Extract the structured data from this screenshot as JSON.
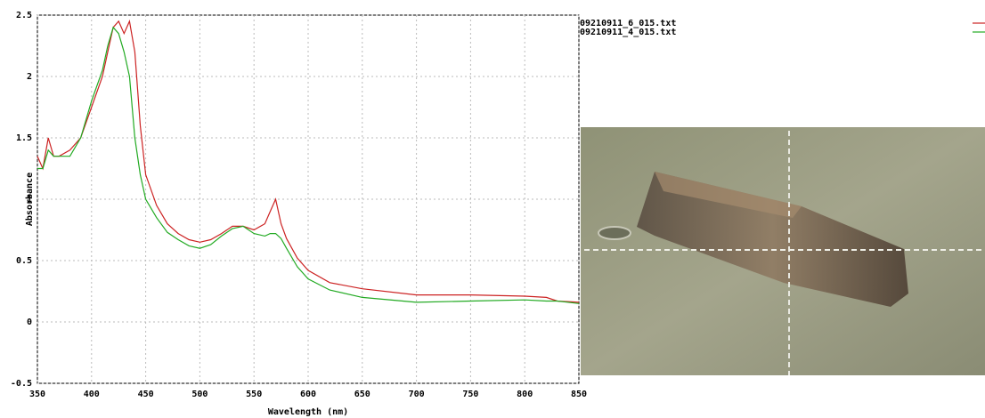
{
  "chart_data": {
    "type": "line",
    "xlabel": "Wavelength (nm)",
    "ylabel": "Absorbance",
    "x": [
      350,
      355,
      360,
      365,
      370,
      380,
      390,
      400,
      410,
      415,
      420,
      425,
      430,
      435,
      440,
      445,
      450,
      460,
      470,
      480,
      490,
      500,
      510,
      520,
      530,
      540,
      550,
      560,
      565,
      570,
      575,
      580,
      590,
      600,
      620,
      650,
      700,
      750,
      800,
      820,
      830,
      850
    ],
    "series": [
      {
        "name": "09210911_6_015.txt",
        "color": "#cc2222",
        "values": [
          1.35,
          1.25,
          1.5,
          1.35,
          1.35,
          1.4,
          1.5,
          1.75,
          2.0,
          2.2,
          2.4,
          2.45,
          2.35,
          2.45,
          2.2,
          1.6,
          1.2,
          0.95,
          0.8,
          0.72,
          0.67,
          0.65,
          0.67,
          0.72,
          0.78,
          0.78,
          0.75,
          0.8,
          0.9,
          1.0,
          0.8,
          0.68,
          0.52,
          0.42,
          0.32,
          0.27,
          0.22,
          0.22,
          0.21,
          0.2,
          0.17,
          0.16
        ]
      },
      {
        "name": "09210911_4_015.txt",
        "color": "#22aa22",
        "values": [
          1.25,
          1.25,
          1.4,
          1.35,
          1.35,
          1.35,
          1.5,
          1.8,
          2.05,
          2.25,
          2.4,
          2.35,
          2.2,
          2.0,
          1.5,
          1.2,
          1.0,
          0.85,
          0.73,
          0.67,
          0.62,
          0.6,
          0.63,
          0.7,
          0.76,
          0.78,
          0.72,
          0.7,
          0.72,
          0.72,
          0.68,
          0.6,
          0.45,
          0.35,
          0.26,
          0.2,
          0.16,
          0.17,
          0.18,
          0.17,
          0.17,
          0.15
        ]
      }
    ],
    "xlim": [
      350,
      850
    ],
    "xticks": [
      350,
      400,
      450,
      500,
      550,
      600,
      650,
      700,
      750,
      800,
      850
    ],
    "ylim": [
      -0.5,
      2.5
    ],
    "yticks": [
      -0.5,
      0,
      0.5,
      1,
      1.5,
      2,
      2.5
    ],
    "grid": true,
    "legend": "top-right"
  }
}
